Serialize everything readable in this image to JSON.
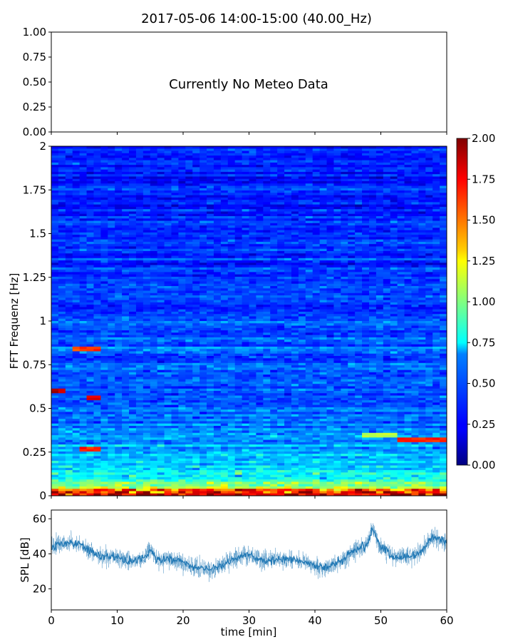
{
  "figure": {
    "title": "2017-05-06 14:00-15:00 (40.00_Hz)"
  },
  "chart_data": [
    {
      "type": "line",
      "panel": "meteo",
      "annotation": "Currently No Meteo Data",
      "ylim": [
        0,
        1
      ],
      "yticks": [
        "0.00",
        "0.25",
        "0.50",
        "0.75",
        "1.00"
      ],
      "xlim": [
        0,
        60
      ]
    },
    {
      "type": "heatmap",
      "panel": "spectrogram",
      "ylabel": "FFT Frequenz [Hz]",
      "xlim": [
        0,
        60
      ],
      "ylim": [
        0,
        2
      ],
      "yticks": [
        "0",
        "0.25",
        "0.5",
        "0.75",
        "1",
        "1.25",
        "1.5",
        "1.75",
        "2"
      ],
      "colormap": "jet",
      "color_range": [
        0,
        2
      ],
      "colorbar_ticks": [
        "0.00",
        "0.25",
        "0.50",
        "0.75",
        "1.00",
        "1.25",
        "1.50",
        "1.75",
        "2.00"
      ],
      "intensity_profile": [
        {
          "freq": 0.0,
          "level": 1.7
        },
        {
          "freq": 0.05,
          "level": 1.1
        },
        {
          "freq": 0.1,
          "level": 0.8
        },
        {
          "freq": 0.2,
          "level": 0.65
        },
        {
          "freq": 0.3,
          "level": 0.55
        },
        {
          "freq": 0.5,
          "level": 0.45
        },
        {
          "freq": 1.0,
          "level": 0.38
        },
        {
          "freq": 1.5,
          "level": 0.32
        },
        {
          "freq": 2.0,
          "level": 0.3
        }
      ],
      "hot_spots": [
        {
          "t": [
            0,
            2
          ],
          "f": [
            0.59,
            0.62
          ],
          "level": 1.9
        },
        {
          "t": [
            5,
            7
          ],
          "f": [
            0.55,
            0.57
          ],
          "level": 1.8
        },
        {
          "t": [
            3,
            7
          ],
          "f": [
            0.83,
            0.85
          ],
          "level": 1.6
        },
        {
          "t": [
            4,
            7
          ],
          "f": [
            0.26,
            0.28
          ],
          "level": 1.7
        },
        {
          "t": [
            52,
            60
          ],
          "f": [
            0.31,
            0.33
          ],
          "level": 1.7
        },
        {
          "t": [
            47,
            53
          ],
          "f": [
            0.34,
            0.36
          ],
          "level": 1.1
        }
      ]
    },
    {
      "type": "line",
      "panel": "spl",
      "ylabel": "SPL [dB]",
      "xlabel": "time [min]",
      "xlim": [
        0,
        60
      ],
      "ylim": [
        8,
        65
      ],
      "yticks": [
        "20",
        "40",
        "60"
      ],
      "xticks": [
        "0",
        "10",
        "20",
        "30",
        "40",
        "50",
        "60"
      ],
      "color": "#1f77b4",
      "series": [
        {
          "x": [
            0,
            2,
            4,
            6,
            8,
            10,
            12,
            14,
            15,
            16,
            18,
            20,
            22,
            24,
            26,
            28,
            30,
            32,
            34,
            36,
            38,
            40,
            42,
            44,
            46,
            48,
            48.7,
            50,
            52,
            54,
            56,
            58,
            60
          ],
          "values": [
            44,
            46,
            46,
            41,
            38,
            38,
            36,
            37,
            43,
            36,
            37,
            35,
            32,
            31,
            33,
            38,
            40,
            36,
            37,
            37,
            36,
            33,
            32,
            36,
            42,
            45,
            55,
            44,
            38,
            38,
            41,
            50,
            46
          ]
        }
      ]
    }
  ]
}
